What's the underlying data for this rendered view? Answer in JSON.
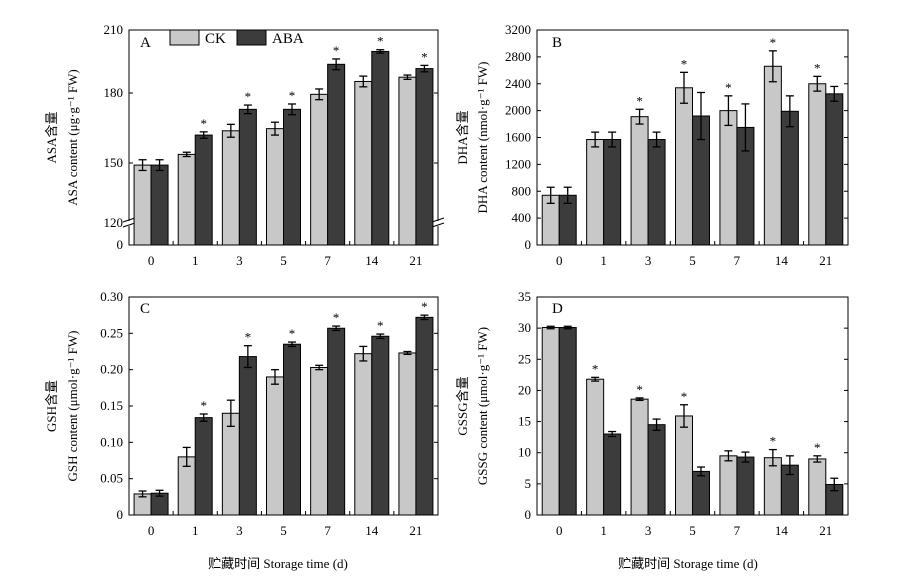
{
  "figure": {
    "legend": [
      {
        "label": "CK",
        "color": "#c8c8c8"
      },
      {
        "label": "ABA",
        "color": "#3c3c3c"
      }
    ],
    "x_axis_label": "贮藏时间 Storage time (d)"
  },
  "chart_data": [
    {
      "panel": "A",
      "type": "bar",
      "categories": [
        "0",
        "1",
        "3",
        "5",
        "7",
        "14",
        "21"
      ],
      "ylabel_cn": "ASA含量",
      "ylabel_en": "ASA content (μg·g⁻¹ FW)",
      "ylim": [
        120,
        210
      ],
      "axis_break": true,
      "ytick_labels": [
        "0",
        "120",
        "150",
        "180",
        "210"
      ],
      "series": [
        {
          "name": "CK",
          "values": [
            147,
            152,
            163,
            164,
            180,
            186,
            188
          ],
          "errors": [
            2.5,
            1,
            3,
            3,
            2.5,
            2.5,
            1
          ]
        },
        {
          "name": "ABA",
          "values": [
            147,
            161,
            173,
            173,
            194,
            200,
            192
          ],
          "errors": [
            2.5,
            1.5,
            2,
            2.5,
            2.5,
            0.8,
            1.5
          ]
        }
      ],
      "significance": [
        false,
        true,
        true,
        true,
        true,
        true,
        true
      ]
    },
    {
      "panel": "B",
      "type": "bar",
      "categories": [
        "0",
        "1",
        "3",
        "5",
        "7",
        "14",
        "21"
      ],
      "ylabel_cn": "DHA含量",
      "ylabel_en": "DHA content (nmol·g⁻¹ FW)",
      "ylim": [
        0,
        3200
      ],
      "ytick_labels": [
        "0",
        "400",
        "800",
        "1200",
        "1600",
        "2000",
        "2400",
        "2800",
        "3200"
      ],
      "series": [
        {
          "name": "CK",
          "values": [
            740,
            1570,
            1910,
            2340,
            2000,
            2660,
            2400
          ],
          "errors": [
            120,
            110,
            110,
            230,
            220,
            230,
            110
          ]
        },
        {
          "name": "ABA",
          "values": [
            740,
            1570,
            1570,
            1920,
            1750,
            1990,
            2250
          ],
          "errors": [
            120,
            110,
            110,
            350,
            350,
            230,
            110
          ]
        }
      ],
      "significance": [
        false,
        false,
        true,
        true,
        true,
        true,
        true
      ]
    },
    {
      "panel": "C",
      "type": "bar",
      "categories": [
        "0",
        "1",
        "3",
        "5",
        "7",
        "14",
        "21"
      ],
      "ylabel_cn": "GSH含量",
      "ylabel_en": "GSH content (μmol·g⁻¹ FW)",
      "ylim": [
        0,
        0.3
      ],
      "ytick_labels": [
        "0",
        "0.05",
        "0.10",
        "0.15",
        "0.20",
        "0.25",
        "0.30"
      ],
      "series": [
        {
          "name": "CK",
          "values": [
            0.029,
            0.08,
            0.14,
            0.19,
            0.203,
            0.222,
            0.223
          ],
          "errors": [
            0.004,
            0.013,
            0.018,
            0.01,
            0.003,
            0.01,
            0.002
          ]
        },
        {
          "name": "ABA",
          "values": [
            0.03,
            0.134,
            0.218,
            0.235,
            0.257,
            0.246,
            0.272
          ],
          "errors": [
            0.004,
            0.005,
            0.015,
            0.003,
            0.003,
            0.003,
            0.003
          ]
        }
      ],
      "significance": [
        false,
        true,
        true,
        true,
        true,
        true,
        true
      ]
    },
    {
      "panel": "D",
      "type": "bar",
      "categories": [
        "0",
        "1",
        "3",
        "5",
        "7",
        "14",
        "21"
      ],
      "ylabel_cn": "GSSG含量",
      "ylabel_en": "GSSG content (μmol·g⁻¹ FW)",
      "ylim": [
        0,
        35
      ],
      "ytick_labels": [
        "0",
        "5",
        "10",
        "15",
        "20",
        "25",
        "30",
        "35"
      ],
      "series": [
        {
          "name": "CK",
          "values": [
            30.1,
            21.8,
            18.6,
            15.9,
            9.5,
            9.2,
            9.0
          ],
          "errors": [
            0.2,
            0.3,
            0.2,
            1.8,
            0.8,
            1.3,
            0.5
          ]
        },
        {
          "name": "ABA",
          "values": [
            30.1,
            13.0,
            14.5,
            7.0,
            9.3,
            8.0,
            4.9
          ],
          "errors": [
            0.2,
            0.4,
            0.9,
            0.7,
            0.8,
            1.5,
            1.0
          ]
        }
      ],
      "significance": [
        false,
        true,
        true,
        true,
        false,
        true,
        true
      ]
    }
  ]
}
